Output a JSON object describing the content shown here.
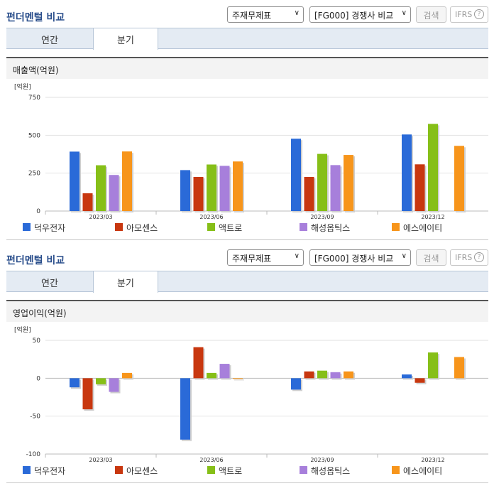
{
  "panels": [
    {
      "title": "펀더멘털 비교",
      "select1": "주재무제표",
      "select2": "[FG000] 경쟁사 비교",
      "search_label": "검색",
      "ifrs_label": "IFRS",
      "help_label": "?",
      "tabs": [
        "연간",
        "분기"
      ],
      "active_tab": "분기",
      "chart_title": "매출액(억원)"
    },
    {
      "title": "펀더멘털 비교",
      "select1": "주재무제표",
      "select2": "[FG000] 경쟁사 비교",
      "search_label": "검색",
      "ifrs_label": "IFRS",
      "help_label": "?",
      "tabs": [
        "연간",
        "분기"
      ],
      "active_tab": "분기",
      "chart_title": "영업이익(억원)"
    }
  ],
  "colors": {
    "덕우전자": "#2a6ad8",
    "아모센스": "#c8370f",
    "액트로": "#86bf18",
    "해성옵틱스": "#a77fdb",
    "에스에이티": "#f7951b"
  },
  "chart_data": [
    {
      "type": "bar",
      "title": "매출액(억원)",
      "unit_label": "[억원]",
      "categories": [
        "2023/03",
        "2023/06",
        "2023/09",
        "2023/12"
      ],
      "ylim": [
        0,
        750
      ],
      "yticks": [
        0,
        250,
        500,
        750
      ],
      "series": [
        {
          "name": "덕우전자",
          "values": [
            392,
            270,
            477,
            505
          ]
        },
        {
          "name": "아모센스",
          "values": [
            117,
            225,
            225,
            308
          ]
        },
        {
          "name": "액트로",
          "values": [
            302,
            307,
            377,
            575
          ]
        },
        {
          "name": "해성옵틱스",
          "values": [
            238,
            298,
            303,
            null
          ]
        },
        {
          "name": "에스에이티",
          "values": [
            393,
            327,
            370,
            430
          ]
        }
      ],
      "legend_position": "bottom",
      "grid": true
    },
    {
      "type": "bar",
      "title": "영업이익(억원)",
      "unit_label": "[억원]",
      "categories": [
        "2023/03",
        "2023/06",
        "2023/09",
        "2023/12"
      ],
      "ylim": [
        -100,
        50
      ],
      "yticks": [
        -100,
        -50,
        0,
        50
      ],
      "series": [
        {
          "name": "덕우전자",
          "values": [
            -12,
            -81,
            -15,
            5
          ]
        },
        {
          "name": "아모센스",
          "values": [
            -41,
            41,
            9,
            -6
          ]
        },
        {
          "name": "액트로",
          "values": [
            -8,
            7,
            10,
            34
          ]
        },
        {
          "name": "해성옵틱스",
          "values": [
            -18,
            19,
            8,
            null
          ]
        },
        {
          "name": "에스에이티",
          "values": [
            7,
            0,
            9,
            28
          ]
        }
      ],
      "legend_position": "bottom",
      "grid": true
    }
  ]
}
